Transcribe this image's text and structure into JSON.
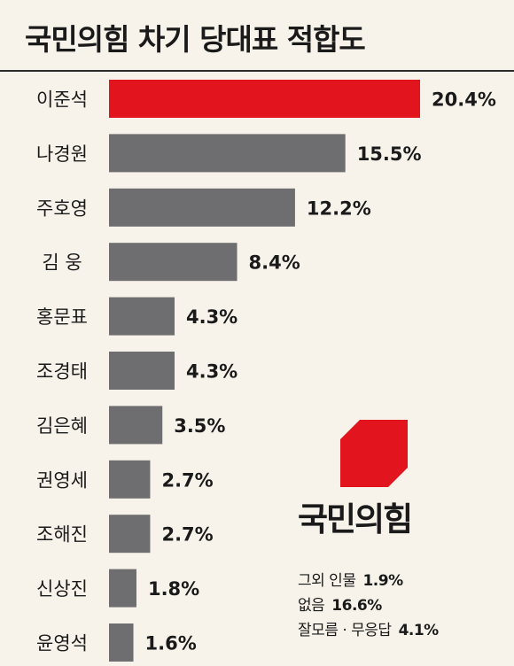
{
  "title": "국민의힘 차기 당대표 적합도",
  "logo": {
    "text": "국민의힘",
    "color": "#e2141d"
  },
  "notes": [
    {
      "label": "그외 인물",
      "value": "1.9%"
    },
    {
      "label": "없음",
      "value": "16.6%"
    },
    {
      "label": "잘모름 · 무응답",
      "value": "4.1%"
    }
  ],
  "colors": {
    "highlight": "#e2141d",
    "bar": "#6e6e70",
    "text": "#1a1a1a"
  },
  "chart_data": {
    "type": "bar",
    "orientation": "horizontal",
    "title": "국민의힘 차기 당대표 적합도",
    "unit": "%",
    "categories": [
      "이준석",
      "나경원",
      "주호영",
      "김  웅",
      "홍문표",
      "조경태",
      "김은혜",
      "권영세",
      "조해진",
      "신상진",
      "윤영석"
    ],
    "values": [
      20.4,
      15.5,
      12.2,
      8.4,
      4.3,
      4.3,
      3.5,
      2.7,
      2.7,
      1.8,
      1.6
    ],
    "value_labels": [
      "20.4%",
      "15.5%",
      "12.2%",
      "8.4%",
      "4.3%",
      "4.3%",
      "3.5%",
      "2.7%",
      "2.7%",
      "1.8%",
      "1.6%"
    ],
    "highlight_index": 0,
    "xlim": [
      0,
      20.4
    ],
    "grid": false,
    "legend": "none"
  }
}
